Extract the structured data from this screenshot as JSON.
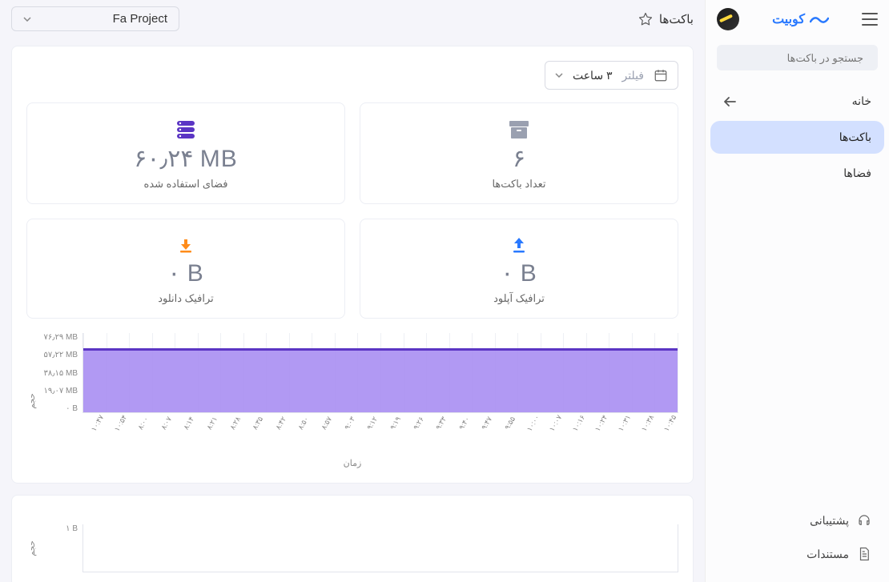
{
  "brand": {
    "name": "کوبیت"
  },
  "avatar": {
    "bg": "#1a1a1a"
  },
  "search": {
    "placeholder": "جستجو در باکت‌ها"
  },
  "nav": {
    "items": [
      {
        "label": "خانه",
        "icon": "arrow-left",
        "active": false
      },
      {
        "label": "باکت‌ها",
        "icon": "",
        "active": true
      },
      {
        "label": "فضاها",
        "icon": "",
        "active": false
      }
    ]
  },
  "sidebar_bottom": {
    "support": {
      "label": "پشتیبانی"
    },
    "docs": {
      "label": "مستندات"
    }
  },
  "header": {
    "page_title": "باکت‌ها",
    "project_name": "Fa Project"
  },
  "filter": {
    "label": "فیلتر",
    "value": "۳ ساعت"
  },
  "stats": {
    "buckets_count": {
      "value": "۶",
      "label": "تعداد باکت‌ها",
      "icon_color": "#9aa0b0"
    },
    "used_space": {
      "value": "۶۰٫۲۴ MB",
      "label": "فضای استفاده شده",
      "icon_color": "#5b35c4"
    },
    "upload": {
      "value": "۰ B",
      "label": "ترافیک آپلود",
      "icon_color": "#2979ff"
    },
    "download": {
      "value": "۰ B",
      "label": "ترافیک دانلود",
      "icon_color": "#ff8c1a"
    }
  },
  "chart1": {
    "y_title": "حجم",
    "x_title": "زمان",
    "y_ticks": [
      "۷۶٫۲۹ MB",
      "۵۷٫۲۲ MB",
      "۳۸٫۱۵ MB",
      "۱۹٫۰۷ MB",
      "۰ B"
    ],
    "y_max": 76.29,
    "series_value": 60.24,
    "line_color": "#5b35c4",
    "fill_color": "#a88ef2",
    "grid_color": "#eef0f5",
    "background": "#ffffff",
    "x_ticks": [
      "۱۰:۴۷",
      "۱۰:۵۴",
      "۸:۰۰",
      "۸:۰۷",
      "۸:۱۴",
      "۸:۲۱",
      "۸:۲۸",
      "۸:۳۵",
      "۸:۴۲",
      "۸:۵۰",
      "۸:۵۷",
      "۹:۰۳",
      "۹:۱۲",
      "۹:۱۹",
      "۹:۲۶",
      "۹:۳۳",
      "۹:۴۰",
      "۹:۴۷",
      "۹:۵۵",
      "۱۰:۰۰",
      "۱۰:۰۷",
      "۱۰:۱۶",
      "۱۰:۲۴",
      "۱۰:۳۱",
      "۱۰:۳۸",
      "۱۰:۴۵"
    ]
  },
  "chart2": {
    "y_title": "حجم",
    "y_ticks": [
      "۱ B"
    ],
    "background": "#ffffff"
  }
}
